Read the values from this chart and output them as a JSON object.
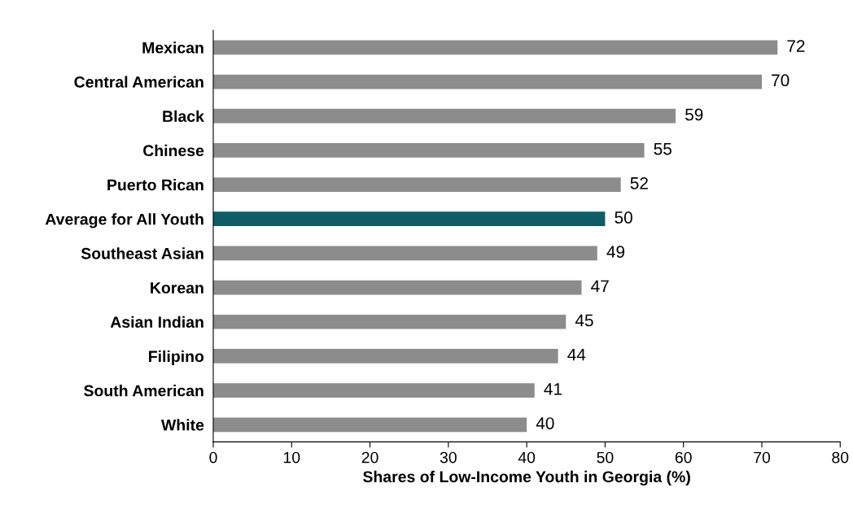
{
  "chart_data": {
    "type": "bar",
    "orientation": "horizontal",
    "xlabel": "Shares of Low-Income Youth in Georgia (%)",
    "categories": [
      "Mexican",
      "Central American",
      "Black",
      "Chinese",
      "Puerto Rican",
      "Average for All Youth",
      "Southeast Asian",
      "Korean",
      "Asian Indian",
      "Filipino",
      "South American",
      "White"
    ],
    "values": [
      72,
      70,
      59,
      55,
      52,
      50,
      49,
      47,
      45,
      44,
      41,
      40
    ],
    "colors": [
      "#8c8c8c",
      "#8c8c8c",
      "#8c8c8c",
      "#8c8c8c",
      "#8c8c8c",
      "#0e5c66",
      "#8c8c8c",
      "#8c8c8c",
      "#8c8c8c",
      "#8c8c8c",
      "#8c8c8c",
      "#8c8c8c"
    ],
    "xlim": [
      0,
      80
    ],
    "xticks": [
      0,
      10,
      20,
      30,
      40,
      50,
      60,
      70,
      80
    ],
    "data_labels": true,
    "grid": false,
    "legend": false
  }
}
